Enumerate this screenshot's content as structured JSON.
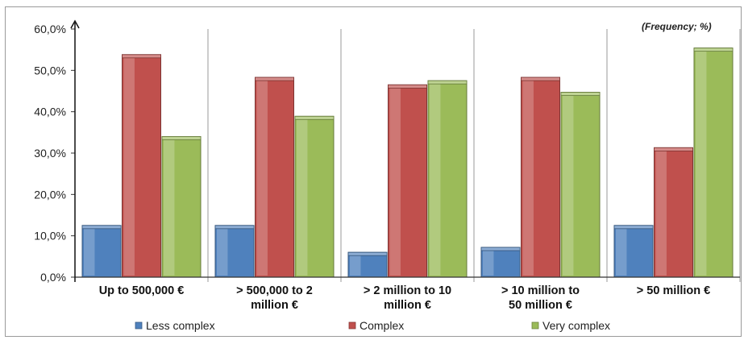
{
  "chart_data": {
    "type": "bar",
    "annotation": "(Frequency; %)",
    "categories": [
      [
        "Up to 500,000 €"
      ],
      [
        "> 500,000 to 2",
        "million €"
      ],
      [
        "> 2 million to 10",
        "million €"
      ],
      [
        "> 10 million to",
        "50 million €"
      ],
      [
        "> 50 million €"
      ]
    ],
    "series": [
      {
        "name": "Less complex",
        "color": "#4f81bd",
        "values": [
          12.5,
          12.5,
          6.0,
          7.2,
          12.5
        ]
      },
      {
        "name": "Complex",
        "color": "#c0504d",
        "values": [
          53.8,
          48.3,
          46.5,
          48.3,
          31.3
        ]
      },
      {
        "name": "Very complex",
        "color": "#9bbb59",
        "values": [
          34.0,
          38.9,
          47.5,
          44.7,
          55.4
        ]
      }
    ],
    "ylim": [
      0,
      60
    ],
    "y_ticks": [
      "0,0%",
      "10,0%",
      "20,0%",
      "30,0%",
      "40,0%",
      "50,0%",
      "60,0%"
    ],
    "grid": false,
    "legend_position": "bottom"
  }
}
